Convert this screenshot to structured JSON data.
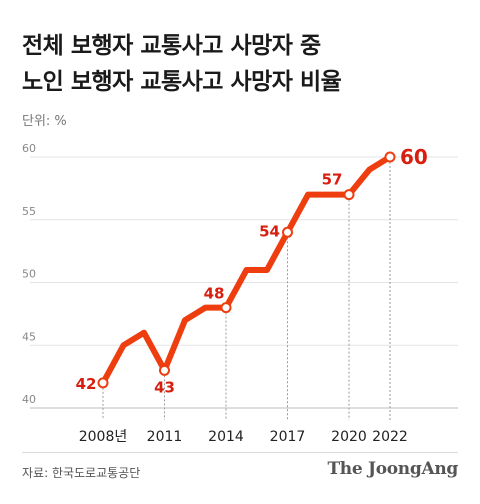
{
  "title_line1": "전체 보행자 교통사고 사망자 중",
  "title_line2": "노인 보행자 교통사고 사망자 비율",
  "unit_label": "단위: %",
  "source": "자료: 한국도로교통공단",
  "brand": "The JoongAng",
  "chart_data": {
    "type": "line",
    "title": "전체 보행자 교통사고 사망자 중 노인 보행자 교통사고 사망자 비율",
    "ylabel": "단위: %",
    "x": [
      2008,
      2009,
      2010,
      2011,
      2012,
      2013,
      2014,
      2015,
      2016,
      2017,
      2018,
      2019,
      2020,
      2021,
      2022
    ],
    "values": [
      42,
      45,
      46,
      43,
      47,
      48,
      48,
      51,
      51,
      54,
      57,
      57,
      57,
      59,
      60
    ],
    "ylim": [
      40,
      60
    ],
    "yticks": [
      40,
      45,
      50,
      55,
      60
    ],
    "xticks": [
      2008,
      2011,
      2014,
      2017,
      2020,
      2022
    ],
    "xtick_labels": [
      "2008년",
      "2011",
      "2014",
      "2017",
      "2020",
      "2022"
    ],
    "labeled_points": [
      {
        "x": 2008,
        "label": "42"
      },
      {
        "x": 2011,
        "label": "43"
      },
      {
        "x": 2014,
        "label": "48"
      },
      {
        "x": 2017,
        "label": "54"
      },
      {
        "x": 2020,
        "label": "57"
      },
      {
        "x": 2022,
        "label": "60"
      }
    ],
    "grid": true,
    "colors": {
      "line": "#ee3d0f",
      "label": "#d81e0e",
      "grid": "#e3e3e3"
    }
  }
}
